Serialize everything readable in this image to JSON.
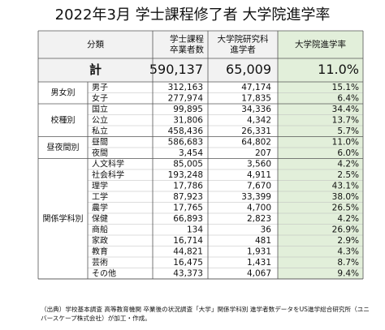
{
  "title": "2022年3月 学士課程修了者 大学院進学率",
  "table": {
    "header": [
      [
        "分類"
      ],
      [
        "学士課程",
        "卒業者数"
      ],
      [
        "大学院研究科",
        "進学者"
      ],
      [
        "大学院進学率"
      ]
    ],
    "total": {
      "label": "計",
      "values": [
        "590,137",
        "65,009",
        "11.0%"
      ]
    },
    "groups": [
      {
        "label": "男女別",
        "rows": [
          {
            "label": "男子",
            "values": [
              "312,163",
              "47,174",
              "15.1%"
            ]
          },
          {
            "label": "女子",
            "values": [
              "277,974",
              "17,835",
              "6.4%"
            ]
          }
        ]
      },
      {
        "label": "校種別",
        "rows": [
          {
            "label": "国立",
            "values": [
              "99,895",
              "34,336",
              "34.4%"
            ]
          },
          {
            "label": "公立",
            "values": [
              "31,806",
              "4,342",
              "13.7%"
            ]
          },
          {
            "label": "私立",
            "values": [
              "458,436",
              "26,331",
              "5.7%"
            ]
          }
        ]
      },
      {
        "label": "昼夜間別",
        "rows": [
          {
            "label": "昼間",
            "values": [
              "586,683",
              "64,802",
              "11.0%"
            ]
          },
          {
            "label": "夜間",
            "values": [
              "3,454",
              "207",
              "6.0%"
            ]
          }
        ]
      },
      {
        "label": "関係学科別",
        "rows": [
          {
            "label": "人文科学",
            "values": [
              "85,005",
              "3,560",
              "4.2%"
            ]
          },
          {
            "label": "社会科学",
            "values": [
              "193,248",
              "4,911",
              "2.5%"
            ]
          },
          {
            "label": "理学",
            "values": [
              "17,786",
              "7,670",
              "43.1%"
            ]
          },
          {
            "label": "工学",
            "values": [
              "87,923",
              "33,399",
              "38.0%"
            ]
          },
          {
            "label": "農学",
            "values": [
              "17,765",
              "4,700",
              "26.5%"
            ]
          },
          {
            "label": "保健",
            "values": [
              "66,893",
              "2,823",
              "4.2%"
            ]
          },
          {
            "label": "商船",
            "values": [
              "134",
              "36",
              "26.9%"
            ]
          },
          {
            "label": "家政",
            "values": [
              "16,714",
              "481",
              "2.9%"
            ]
          },
          {
            "label": "教育",
            "values": [
              "44,821",
              "1,931",
              "4.3%"
            ]
          },
          {
            "label": "芸術",
            "values": [
              "16,475",
              "1,431",
              "8.7%"
            ]
          },
          {
            "label": "その他",
            "values": [
              "43,373",
              "4,067",
              "9.4%"
            ]
          }
        ]
      }
    ]
  },
  "note": [
    "（出典）学校基本調査 高等教育機関 卒業後の状況調査「大学」関係学科別 進学者数データをUS進学総合研究所（ユニ",
    "バースケープ株式会社）が加工・作成。"
  ]
}
